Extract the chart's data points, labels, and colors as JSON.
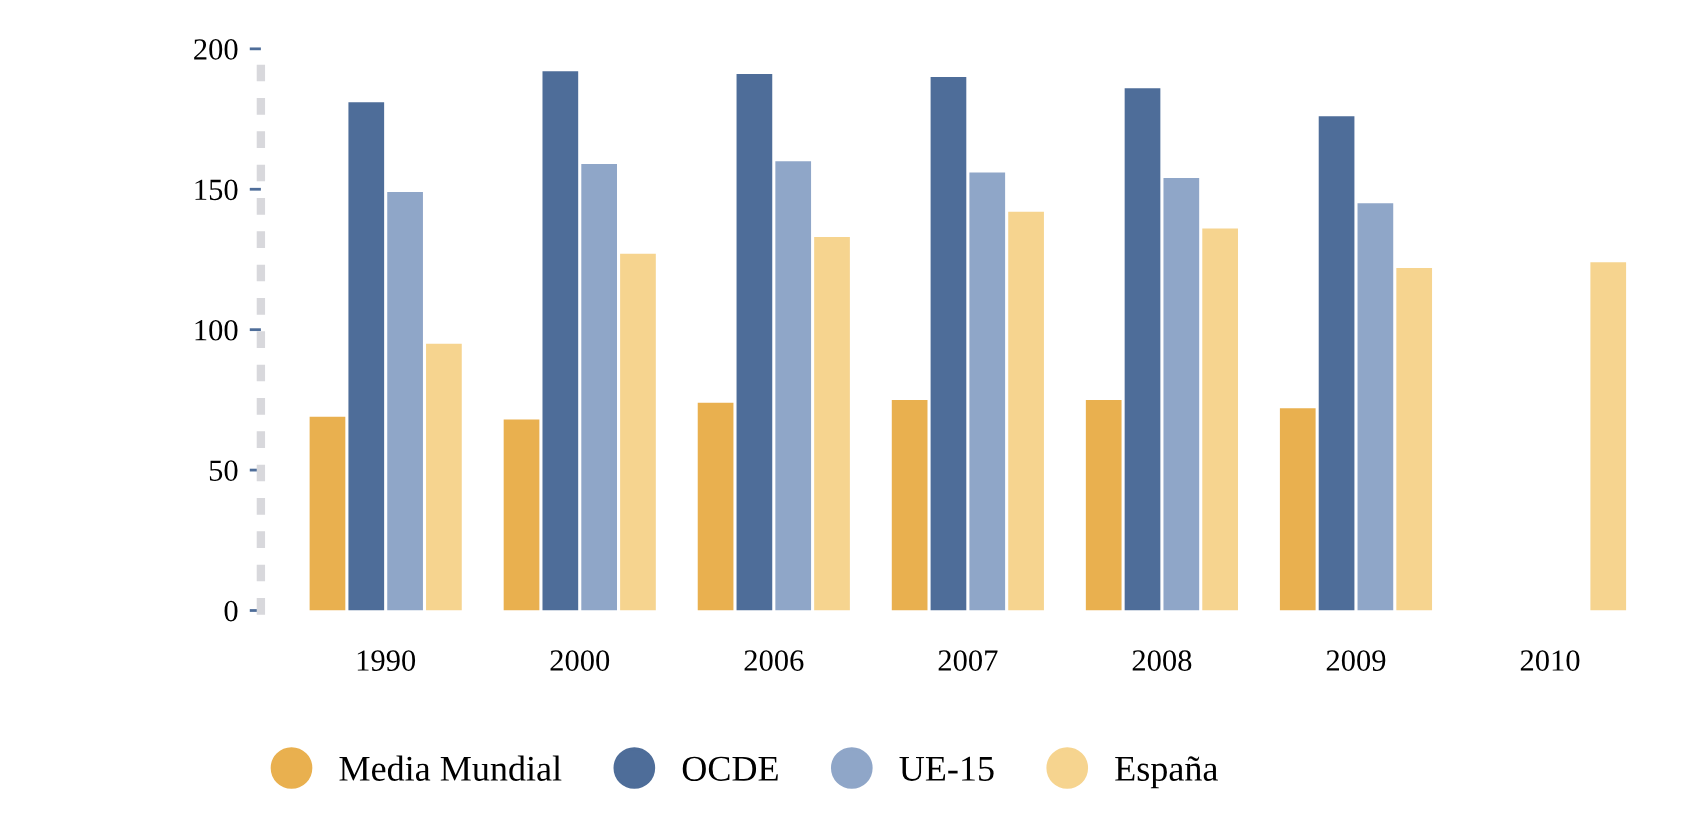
{
  "chart_data": {
    "type": "bar",
    "categories": [
      "1990",
      "2000",
      "2006",
      "2007",
      "2008",
      "2009",
      "2010"
    ],
    "series": [
      {
        "name": "Media Mundial",
        "color": "#e9b04f",
        "values": [
          69,
          68,
          74,
          75,
          75,
          72,
          null
        ]
      },
      {
        "name": "OCDE",
        "color": "#4e6d99",
        "values": [
          181,
          192,
          191,
          190,
          186,
          176,
          null
        ]
      },
      {
        "name": "UE-15",
        "color": "#8fa6c8",
        "values": [
          149,
          159,
          160,
          156,
          154,
          145,
          null
        ]
      },
      {
        "name": "España",
        "color": "#f6d48f",
        "values": [
          95,
          127,
          133,
          142,
          136,
          122,
          124
        ]
      }
    ],
    "ylim": [
      0,
      200
    ],
    "yticks": [
      0,
      50,
      100,
      150,
      200
    ],
    "grid": false,
    "legend": "bottom"
  }
}
